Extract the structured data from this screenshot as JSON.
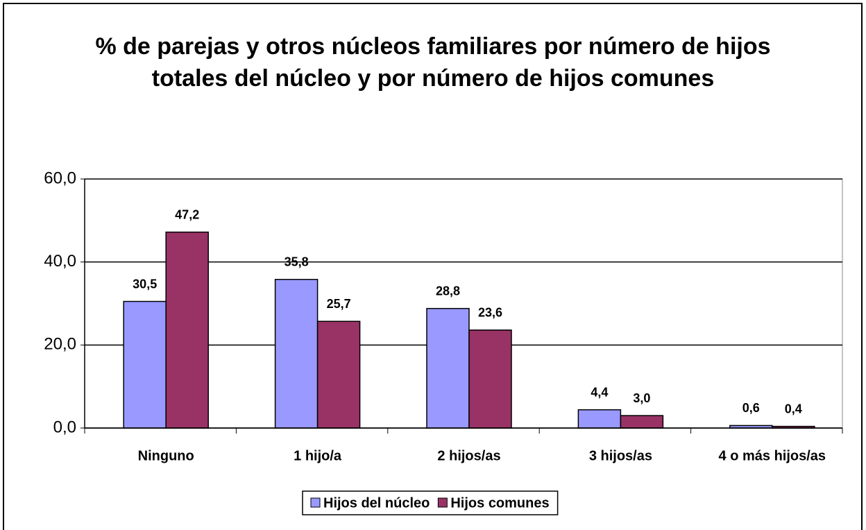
{
  "chart_data": {
    "type": "bar",
    "title": "% de parejas y otros núcleos familiares por número de hijos totales del núcleo y por número de hijos comunes",
    "categories": [
      "Ninguno",
      "1 hijo/a",
      "2 hijos/as",
      "3 hijos/as",
      "4 o más hijos/as"
    ],
    "series": [
      {
        "name": "Hijos del núcleo",
        "color": "#9999ff",
        "values": [
          30.5,
          35.8,
          28.8,
          4.4,
          0.6
        ],
        "value_labels": [
          "30,5",
          "35,8",
          "28,8",
          "4,4",
          "0,6"
        ]
      },
      {
        "name": "Hijos comunes",
        "color": "#993366",
        "values": [
          47.2,
          25.7,
          23.6,
          3.0,
          0.4
        ],
        "value_labels": [
          "47,2",
          "25,7",
          "23,6",
          "3,0",
          "0,4"
        ]
      }
    ],
    "ylim": [
      0,
      60
    ],
    "yticks": [
      {
        "value": 0,
        "label": "0,0"
      },
      {
        "value": 20,
        "label": "20,0"
      },
      {
        "value": 40,
        "label": "40,0"
      },
      {
        "value": 60,
        "label": "60,0"
      }
    ],
    "grid": true,
    "legend": "bottom"
  }
}
